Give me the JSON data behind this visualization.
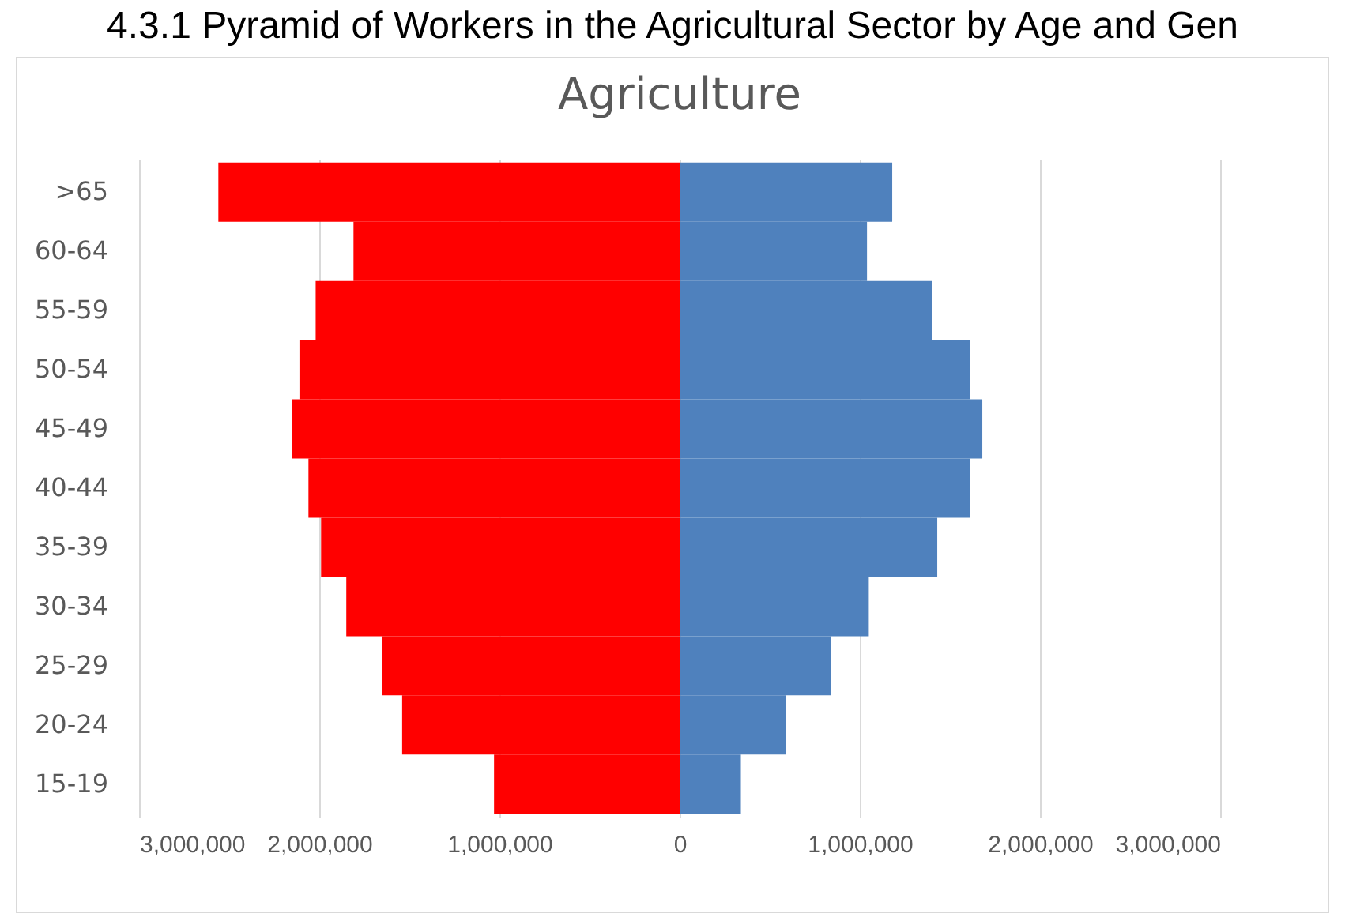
{
  "chart_data": {
    "type": "bar",
    "orientation": "horizontal",
    "title": "Agriculture",
    "annotations": [
      "4.3.1 Pyramid of Workers in the Agricultural Sector by Age and Gen"
    ],
    "categories": [
      ">65",
      "60-64",
      "55-59",
      "50-54",
      "45-49",
      "40-44",
      "35-39",
      "30-34",
      "25-29",
      "20-24",
      "15-19"
    ],
    "series": [
      {
        "color": "#ff0000",
        "values": [
          -2560000,
          -1810000,
          -2020000,
          -2110000,
          -2150000,
          -2060000,
          -1990000,
          -1850000,
          -1650000,
          -1540000,
          -1030000
        ]
      },
      {
        "color": "#4f81bd",
        "values": [
          1180000,
          1040000,
          1400000,
          1610000,
          1680000,
          1610000,
          1430000,
          1050000,
          840000,
          590000,
          340000
        ]
      }
    ],
    "xlim": [
      -3000000,
      3000000
    ],
    "xticks": [
      {
        "value": -3000000,
        "label": "3,000,000"
      },
      {
        "value": -2000000,
        "label": "2,000,000"
      },
      {
        "value": -1000000,
        "label": "1,000,000"
      },
      0,
      {
        "value": 1000000,
        "label": "1,000,000"
      },
      {
        "value": 2000000,
        "label": "2,000,000"
      },
      {
        "value": 3000000,
        "label": "3,000,000"
      }
    ],
    "grid": "x",
    "stacked": true
  }
}
